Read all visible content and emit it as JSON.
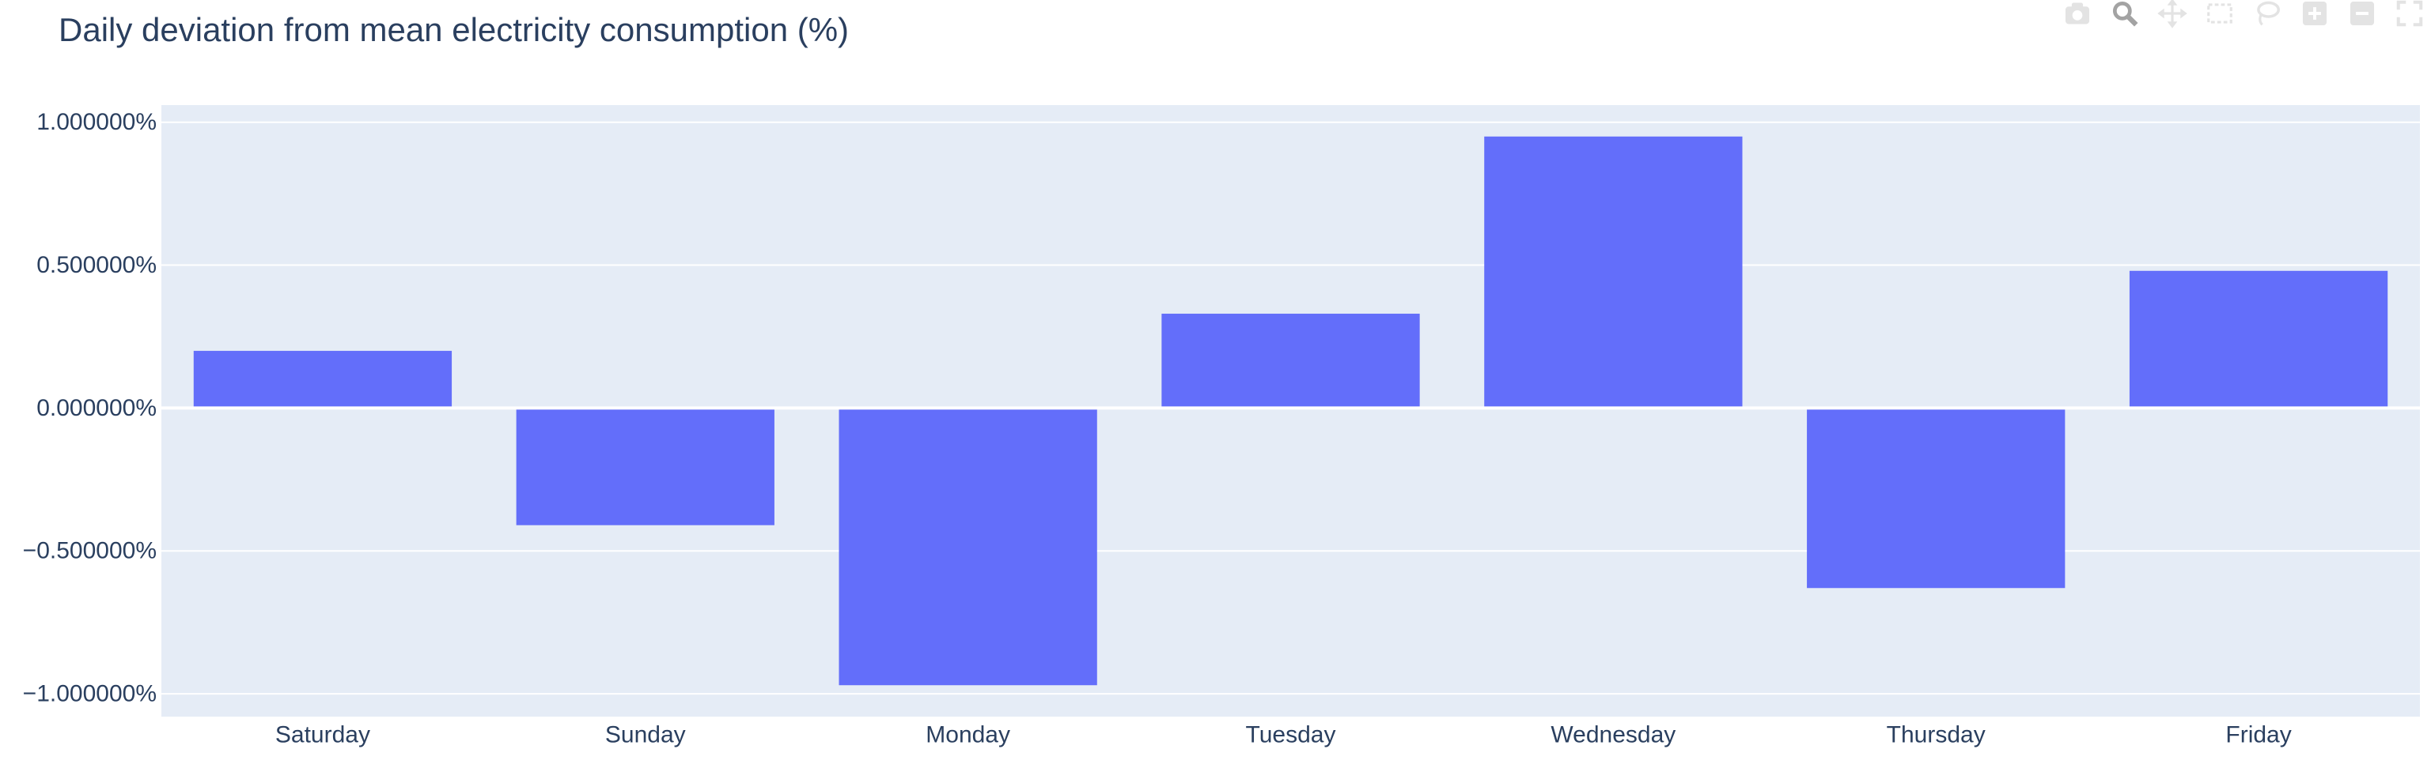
{
  "title": "Daily deviation from mean electricity consumption (%)",
  "colors": {
    "bar": "#636efa",
    "plot_bg": "#e5ecf6",
    "grid": "#ffffff",
    "text": "#2a3f5f"
  },
  "modebar": {
    "icons": [
      "camera-icon",
      "zoom-icon",
      "pan-icon",
      "box-select-icon",
      "lasso-select-icon",
      "zoom-in-icon",
      "zoom-out-icon",
      "autoscale-icon"
    ]
  },
  "chart_data": {
    "type": "bar",
    "categories": [
      "Saturday",
      "Sunday",
      "Monday",
      "Tuesday",
      "Wednesday",
      "Thursday",
      "Friday"
    ],
    "values": [
      0.2,
      -0.41,
      -0.97,
      0.33,
      0.95,
      -0.63,
      0.48
    ],
    "ylim": [
      -1.08,
      1.06
    ],
    "yticks": [
      1.0,
      0.5,
      0.0,
      -0.5,
      -1.0
    ],
    "ytick_labels": [
      "1.000000%",
      "0.500000%",
      "0.000000%",
      "−0.500000%",
      "−1.000000%"
    ],
    "xlabel": "",
    "ylabel": "",
    "grid": true
  }
}
